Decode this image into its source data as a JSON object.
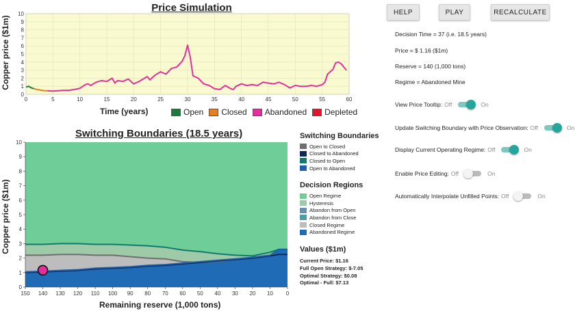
{
  "price_chart": {
    "title": "Price Simulation",
    "ylabel": "Copper price ($1m)",
    "xlabel": "Time (years)",
    "x_ticks": [
      "0",
      "5",
      "10",
      "15",
      "20",
      "25",
      "30",
      "35",
      "40",
      "45",
      "50",
      "55",
      "60"
    ],
    "y_ticks": [
      "0",
      "1",
      "2",
      "3",
      "4",
      "5",
      "6",
      "7",
      "8",
      "9",
      "10"
    ],
    "legend": [
      {
        "label": "Open",
        "color": "#1a7a3a"
      },
      {
        "label": "Closed",
        "color": "#e67e22"
      },
      {
        "label": "Abandoned",
        "color": "#e52e9e"
      },
      {
        "label": "Depleted",
        "color": "#e0162b"
      }
    ]
  },
  "chart_data": [
    {
      "type": "line",
      "title": "Price Simulation",
      "xlabel": "Time (years)",
      "ylabel": "Copper price ($1m)",
      "xlim": [
        0,
        60
      ],
      "ylim": [
        0,
        10
      ],
      "series": [
        {
          "name": "Open",
          "color": "#1a7a3a",
          "x": [
            0,
            0.5,
            1,
            1.5
          ],
          "y": [
            0.9,
            1.0,
            0.8,
            0.7
          ]
        },
        {
          "name": "Closed",
          "color": "#e67e22",
          "x": [
            1.5,
            2,
            2.5,
            3,
            3.5,
            4
          ],
          "y": [
            0.7,
            0.6,
            0.55,
            0.5,
            0.45,
            0.45
          ]
        },
        {
          "name": "Abandoned",
          "color": "#e52e9e",
          "x": [
            4,
            5,
            6,
            7,
            8,
            9,
            10,
            11,
            11.5,
            12,
            13,
            14,
            15,
            16,
            16.5,
            17,
            18,
            19,
            20,
            21,
            22,
            22.5,
            23,
            24,
            25,
            26,
            27,
            28,
            29,
            29.5,
            30,
            30.5,
            31,
            32,
            33,
            34,
            35,
            36,
            37,
            38,
            38.5,
            39,
            40,
            41,
            42,
            43,
            44,
            45,
            46,
            47,
            48,
            49,
            50,
            51,
            52,
            53,
            54,
            55,
            55.5,
            56,
            57,
            57.5,
            58,
            58.5,
            59,
            59.5
          ],
          "y": [
            0.45,
            0.4,
            0.45,
            0.5,
            0.5,
            0.6,
            0.75,
            1.2,
            1.3,
            1.1,
            1.5,
            1.7,
            1.6,
            2.0,
            1.4,
            1.7,
            1.6,
            1.9,
            1.3,
            1.6,
            2.0,
            2.2,
            1.8,
            2.4,
            2.8,
            2.5,
            3.2,
            3.4,
            4.1,
            4.8,
            6.1,
            4.6,
            2.3,
            2.0,
            1.3,
            1.1,
            0.7,
            0.6,
            1.1,
            0.7,
            0.6,
            1.0,
            1.3,
            1.1,
            1.2,
            1.1,
            1.5,
            1.4,
            1.3,
            1.5,
            1.2,
            0.8,
            1.1,
            1.0,
            1.0,
            1.1,
            1.0,
            1.2,
            1.5,
            2.5,
            3.1,
            3.9,
            4.0,
            3.8,
            3.4,
            3.0
          ]
        }
      ]
    },
    {
      "type": "area",
      "title": "Switching Boundaries (18.5 years)",
      "xlabel": "Remaining reserve (1,000 tons)",
      "ylabel": "Copper price ($1m)",
      "xlim": [
        150,
        0
      ],
      "ylim": [
        0,
        10
      ],
      "x": [
        150,
        140,
        130,
        120,
        110,
        100,
        90,
        80,
        70,
        60,
        50,
        40,
        30,
        20,
        10,
        5,
        0
      ],
      "series": [
        {
          "name": "Open to Closed",
          "color": "#6e6e6e",
          "values": [
            2.2,
            2.2,
            2.25,
            2.25,
            2.2,
            2.2,
            2.1,
            2.0,
            1.95,
            1.75,
            1.7,
            1.75,
            1.9,
            2.05,
            2.2,
            2.25,
            2.25
          ]
        },
        {
          "name": "Closed to Abandoned",
          "color": "#0b2a5a",
          "values": [
            1.0,
            1.05,
            1.1,
            1.15,
            1.25,
            1.3,
            1.35,
            1.45,
            1.5,
            1.6,
            1.7,
            1.8,
            1.9,
            2.0,
            2.15,
            2.25,
            2.25
          ]
        },
        {
          "name": "Closed to Open",
          "color": "#0f7a6e",
          "values": [
            2.95,
            2.95,
            3.0,
            3.0,
            2.95,
            2.95,
            2.9,
            2.85,
            2.75,
            2.55,
            2.45,
            2.3,
            2.2,
            2.15,
            2.4,
            2.6,
            2.6
          ]
        },
        {
          "name": "Open to Abandoned",
          "color": "#1e5eaa",
          "values": [
            1.05,
            1.1,
            1.15,
            1.2,
            1.3,
            1.35,
            1.4,
            1.5,
            1.55,
            1.65,
            1.75,
            1.85,
            1.95,
            2.05,
            2.2,
            2.6,
            2.6
          ]
        }
      ],
      "current_point": {
        "x": 140,
        "y": 1.16,
        "color": "#e52e9e"
      }
    }
  ],
  "boundary_chart": {
    "title": "Switching Boundaries (18.5 years)",
    "ylabel": "Copper price ($1m)",
    "xlabel": "Remaining reserve (1,000 tons)",
    "x_ticks": [
      "150",
      "140",
      "130",
      "120",
      "110",
      "100",
      "90",
      "80",
      "70",
      "60",
      "50",
      "40",
      "30",
      "20",
      "10",
      "0"
    ],
    "y_ticks": [
      "0",
      "1",
      "2",
      "3",
      "4",
      "5",
      "6",
      "7",
      "8",
      "9",
      "10"
    ],
    "colors": {
      "open_regime": "#6fcd97",
      "hysteresis": "#9fcaa7",
      "abandon_from_open": "#6a8db4",
      "abandon_from_close": "#4a9ca6",
      "closed_regime": "#bdbdbd",
      "abandoned_regime": "#1f6bb5"
    }
  },
  "buttons": {
    "help": "HELP",
    "play": "PLAY",
    "recalculate": "RECALCULATE"
  },
  "info": {
    "decision_time": "Decision Time = 37 (i.e. 18.5 years)",
    "price": "Price = $ 1.16 ($1m)",
    "reserve": "Reserve = 140 (1,000 tons)",
    "regime": "Regime = Abandoned Mine"
  },
  "toggles": [
    {
      "label": "View Price Tooltip:",
      "off": "Off",
      "on": "On",
      "state": true
    },
    {
      "label": "Update Switching Boundary with Price Observation:",
      "off": "Off",
      "on": "On",
      "state": true
    },
    {
      "label": "Display Current Operating Regime:",
      "off": "Off",
      "on": "On",
      "state": true
    },
    {
      "label": "Enable Price Editing:",
      "off": "Off",
      "on": "On",
      "state": false
    },
    {
      "label": "Automatically Interpolate Unfilled Points:",
      "off": "Off",
      "on": "On",
      "state": false
    }
  ],
  "side_legend": {
    "boundaries_title": "Switching Boundaries",
    "boundaries": [
      {
        "label": "Open to Closed",
        "color": "#6e6e6e"
      },
      {
        "label": "Closed to Abandoned",
        "color": "#0b2a5a"
      },
      {
        "label": "Closed to Open",
        "color": "#0f7a6e"
      },
      {
        "label": "Open to Abandoned",
        "color": "#1e5eaa"
      }
    ],
    "regions_title": "Decision Regions",
    "regions": [
      {
        "label": "Open Regime",
        "color": "#6fcd97"
      },
      {
        "label": "Hysteresis",
        "color": "#9fcaa7"
      },
      {
        "label": "Abandon from Open",
        "color": "#6a8db4"
      },
      {
        "label": "Abandon from Close",
        "color": "#4a9ca6"
      },
      {
        "label": "Closed Regime",
        "color": "#bdbdbd"
      },
      {
        "label": "Abandoned Regime",
        "color": "#1f6bb5"
      }
    ],
    "values_title": "Values ($1m)",
    "values": [
      "Current Price: $1.16",
      "Full Open Strategy: $-7.05",
      "Optimal Strategy: $0.08",
      "Optimal - Full: $7.13"
    ]
  }
}
